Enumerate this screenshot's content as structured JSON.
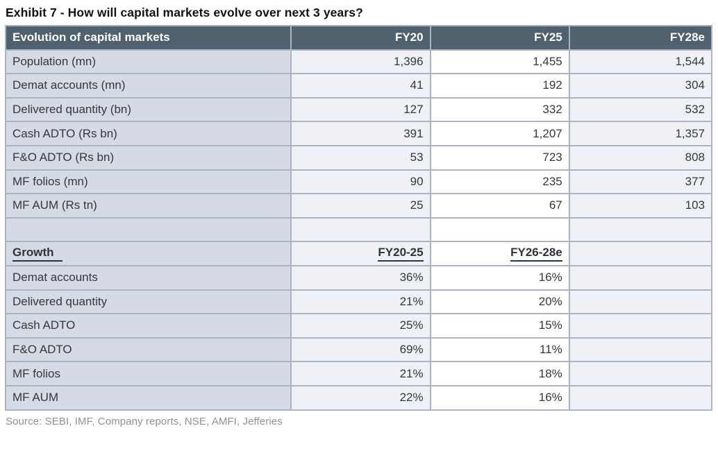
{
  "exhibit_title": "Exhibit 7 - How will capital markets evolve over next 3 years?",
  "source_note": "Source: SEBI, IMF, Company reports, NSE, AMFI, Jefferies",
  "colors": {
    "header_bg": "#4F606E",
    "header_text": "#FFFFFF",
    "label_column_bg": "#D5DAE4",
    "value_column_bg": "#EFF1F7",
    "value_column_alt_bg": "#FFFFFF",
    "border": "#A9B3C2",
    "cell_text": "#33383D",
    "source_text": "#8F9296"
  },
  "chart_data": {
    "type": "table",
    "title": "Exhibit 7 - How will capital markets evolve over next 3 years?",
    "columns": [
      "Evolution of capital markets",
      "FY20",
      "FY25",
      "FY28e"
    ],
    "rows": [
      {
        "label": "Population (mn)",
        "fy20": "1,396",
        "fy25": "1,455",
        "fy28e": "1,544"
      },
      {
        "label": "Demat accounts (mn)",
        "fy20": "41",
        "fy25": "192",
        "fy28e": "304"
      },
      {
        "label": "Delivered quantity (bn)",
        "fy20": "127",
        "fy25": "332",
        "fy28e": "532"
      },
      {
        "label": "Cash ADTO (Rs bn)",
        "fy20": "391",
        "fy25": "1,207",
        "fy28e": "1,357"
      },
      {
        "label": "F&O ADTO (Rs bn)",
        "fy20": "53",
        "fy25": "723",
        "fy28e": "808"
      },
      {
        "label": "MF folios (mn)",
        "fy20": "90",
        "fy25": "235",
        "fy28e": "377"
      },
      {
        "label": "MF AUM (Rs tn)",
        "fy20": "25",
        "fy25": "67",
        "fy28e": "103"
      }
    ],
    "growth_section": {
      "columns": [
        "Growth",
        "FY20-25",
        "FY26-28e"
      ],
      "rows": [
        {
          "label": "Demat accounts",
          "fy20_25": "36%",
          "fy26_28e": "16%"
        },
        {
          "label": "Delivered quantity",
          "fy20_25": "21%",
          "fy26_28e": "20%"
        },
        {
          "label": "Cash ADTO",
          "fy20_25": "25%",
          "fy26_28e": "15%"
        },
        {
          "label": "F&O ADTO",
          "fy20_25": "69%",
          "fy26_28e": "11%"
        },
        {
          "label": "MF folios",
          "fy20_25": "21%",
          "fy26_28e": "18%"
        },
        {
          "label": "MF AUM",
          "fy20_25": "22%",
          "fy26_28e": "16%"
        }
      ]
    },
    "source": "Source: SEBI, IMF, Company reports, NSE, AMFI, Jefferies"
  }
}
